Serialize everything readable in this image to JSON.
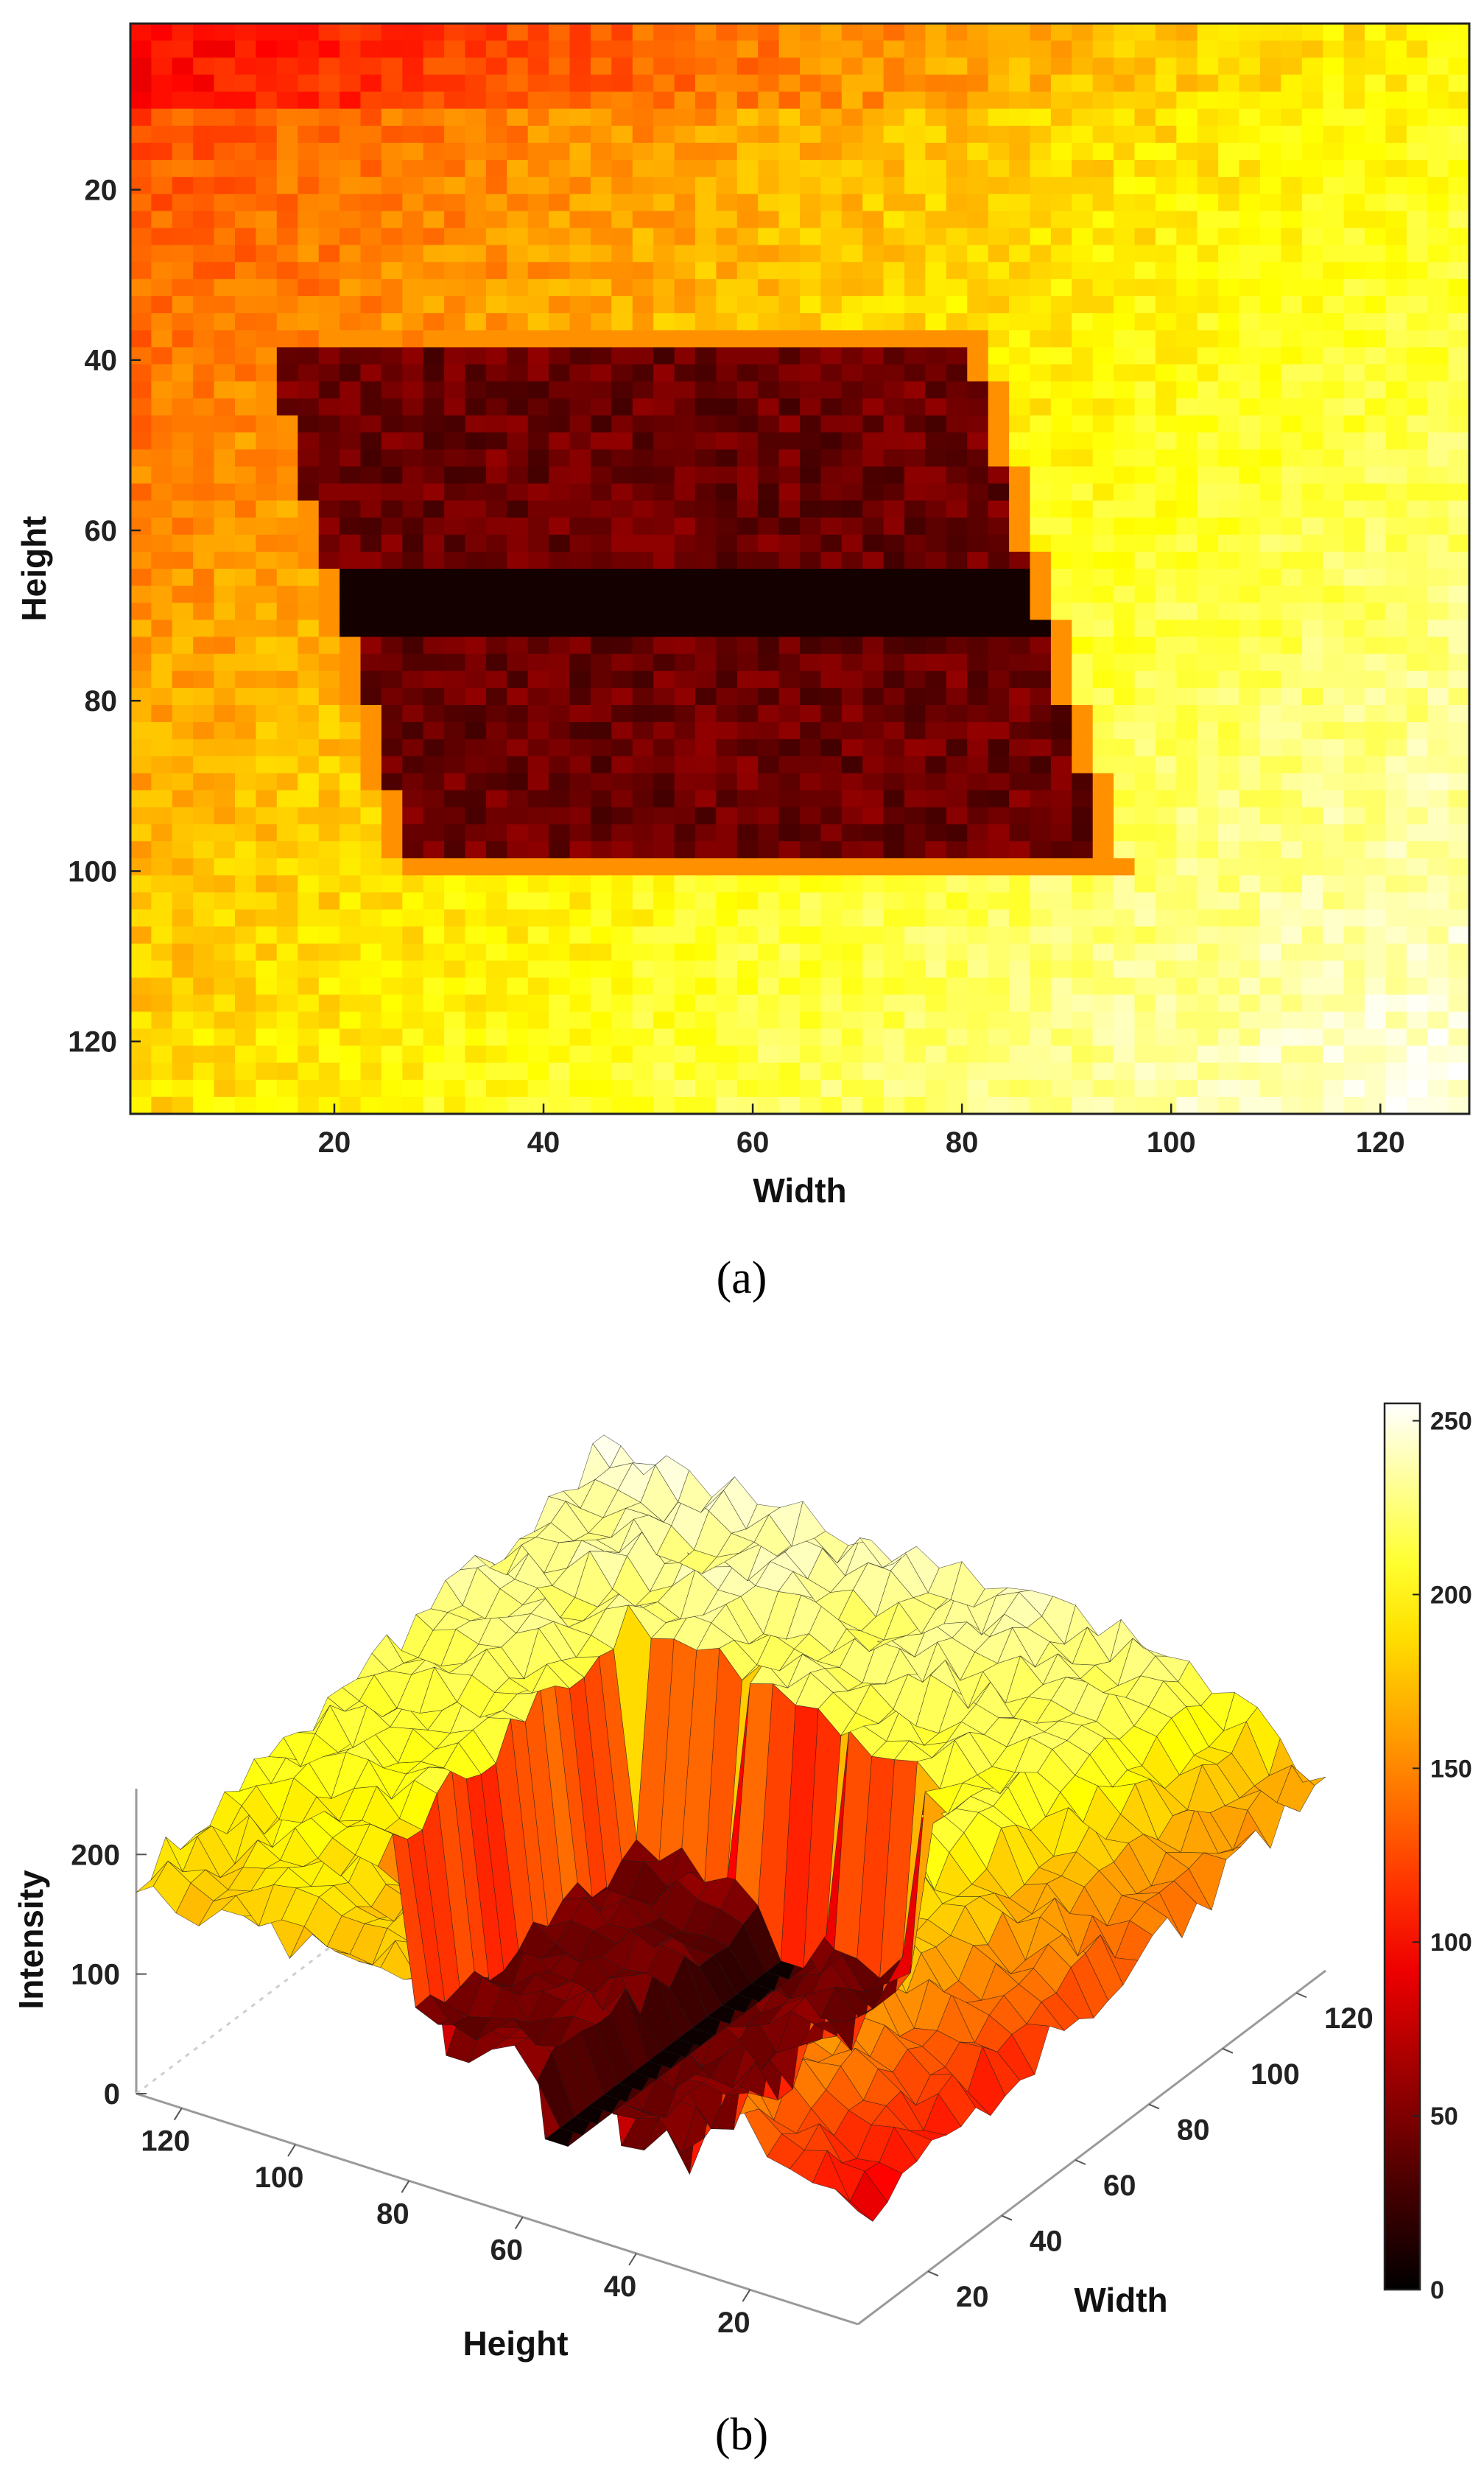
{
  "caption_a": "(a)",
  "caption_b": "(b)",
  "chart_data": [
    {
      "type": "heatmap",
      "panel": "a",
      "title": "",
      "xlabel": "Width",
      "ylabel": "Height",
      "xlim": [
        1,
        128
      ],
      "ylim": [
        1,
        128
      ],
      "y_reversed": true,
      "x_ticks": [
        "20",
        "40",
        "60",
        "80",
        "100",
        "120"
      ],
      "y_ticks": [
        "20",
        "40",
        "60",
        "80",
        "100",
        "120"
      ],
      "colormap": "hot",
      "region": {
        "shape": "parallelogram",
        "top_left": [
          13,
          38
        ],
        "top_right": [
          80,
          39
        ],
        "bottom_right": [
          93,
          98
        ],
        "bottom_left": [
          27,
          98
        ],
        "intensity_inside": 40,
        "stripes_y": [
          66,
          70
        ]
      },
      "background_intensity": {
        "top_left": 120,
        "bottom_right": 250
      }
    },
    {
      "type": "surface",
      "panel": "b",
      "title": "",
      "xlabel": "Height",
      "ylabel": "Width",
      "zlabel": "Intensity",
      "x_ticks": [
        "120",
        "100",
        "80",
        "60",
        "40",
        "20"
      ],
      "y_ticks": [
        "20",
        "40",
        "60",
        "80",
        "100",
        "120"
      ],
      "z_ticks": [
        "0",
        "100",
        "200"
      ],
      "zlim": [
        0,
        255
      ],
      "colormap": "hot",
      "colorbar": {
        "ticks": [
          "0",
          "50",
          "100",
          "150",
          "200",
          "250"
        ],
        "range": [
          0,
          255
        ],
        "placement": "right"
      }
    }
  ]
}
